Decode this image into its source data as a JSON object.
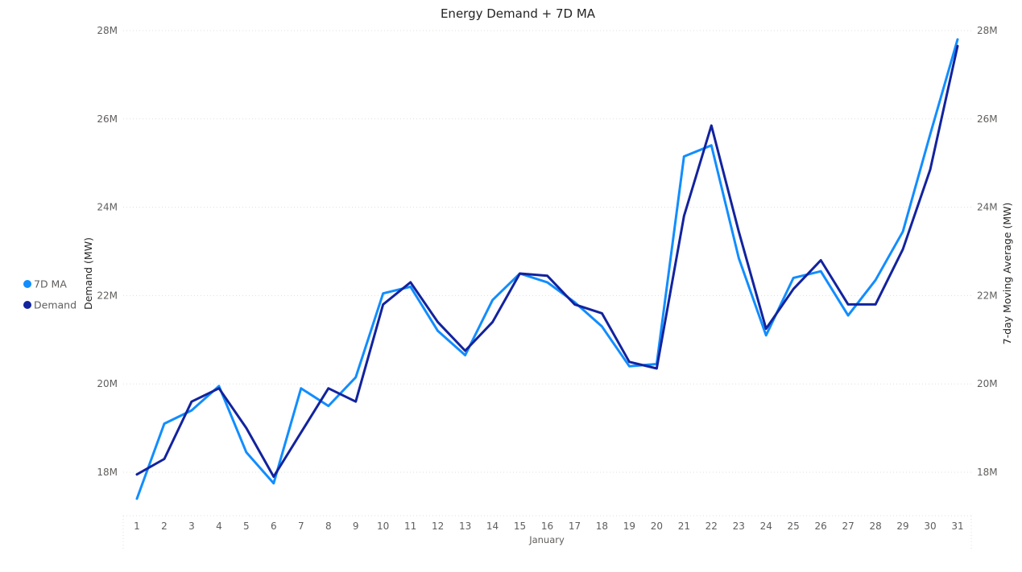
{
  "chart_data": {
    "type": "line",
    "title": "Energy Demand + 7D MA",
    "xlabel": "January",
    "ylabel_left": "Demand (MW)",
    "ylabel_right": "7-day Moving Average (MW)",
    "x": [
      "1",
      "2",
      "3",
      "4",
      "5",
      "6",
      "7",
      "8",
      "9",
      "10",
      "11",
      "12",
      "13",
      "14",
      "15",
      "16",
      "17",
      "18",
      "19",
      "20",
      "21",
      "22",
      "23",
      "24",
      "25",
      "26",
      "27",
      "28",
      "29",
      "30",
      "31"
    ],
    "y_ticks": [
      "18M",
      "20M",
      "22M",
      "24M",
      "26M",
      "28M"
    ],
    "ylim": [
      17.0,
      28.0
    ],
    "grid": true,
    "legend_position": "left",
    "series": [
      {
        "name": "7D MA",
        "color": "#118dff",
        "values": [
          17.4,
          19.1,
          19.4,
          19.95,
          18.45,
          17.75,
          19.9,
          19.5,
          20.15,
          22.05,
          22.2,
          21.2,
          20.65,
          21.9,
          22.5,
          22.3,
          21.85,
          21.3,
          20.4,
          20.45,
          25.15,
          25.4,
          22.85,
          21.1,
          22.4,
          22.55,
          21.55,
          22.35,
          23.45,
          25.65,
          27.8
        ]
      },
      {
        "name": "Demand",
        "color": "#12239e",
        "values": [
          17.95,
          18.3,
          19.6,
          19.9,
          19.0,
          17.9,
          18.9,
          19.9,
          19.6,
          21.8,
          22.3,
          21.4,
          20.75,
          21.4,
          22.5,
          22.45,
          21.8,
          21.6,
          20.5,
          20.35,
          23.8,
          25.85,
          23.45,
          21.25,
          22.15,
          22.8,
          21.8,
          21.8,
          23.05,
          24.85,
          27.65
        ]
      }
    ]
  }
}
